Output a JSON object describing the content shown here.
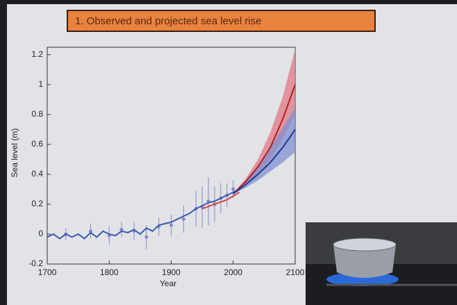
{
  "chart_data": {
    "type": "line",
    "title": "1. Observed and projected sea level rise",
    "xlabel": "Year",
    "ylabel": "Sea level (m)",
    "xlim": [
      1700,
      2100
    ],
    "xticks": [
      1700,
      1800,
      1900,
      2000,
      2100
    ],
    "ylim": [
      -0.2,
      1.25
    ],
    "yticks": [
      -0.2,
      0,
      0.2,
      0.4,
      0.6,
      0.8,
      1,
      1.2
    ],
    "series": [
      {
        "color": "#8a86c8",
        "style": "points",
        "x": [
          1730,
          1770,
          1800,
          1820,
          1840,
          1860,
          1880,
          1900,
          1920,
          1940,
          1950,
          1960,
          1970,
          1980,
          1990,
          2000
        ],
        "values": [
          0.0,
          0.02,
          -0.01,
          0.03,
          0.02,
          -0.02,
          0.05,
          0.06,
          0.1,
          0.17,
          0.18,
          0.22,
          0.2,
          0.24,
          0.26,
          0.3
        ],
        "errors": [
          0.04,
          0.05,
          0.06,
          0.05,
          0.06,
          0.08,
          0.06,
          0.07,
          0.09,
          0.12,
          0.14,
          0.16,
          0.12,
          0.1,
          0.08,
          0.06
        ]
      },
      {
        "color": "#3a5ab0",
        "style": "line",
        "x": [
          1700,
          1710,
          1720,
          1730,
          1740,
          1750,
          1760,
          1770,
          1780,
          1790,
          1800,
          1810,
          1820,
          1830,
          1840,
          1850,
          1860,
          1870,
          1880,
          1890,
          1900,
          1910,
          1920,
          1930,
          1940,
          1950,
          1960,
          1970,
          1980,
          1990,
          2000,
          2010
        ],
        "values": [
          -0.02,
          0.0,
          -0.03,
          0.0,
          -0.02,
          0.0,
          -0.03,
          0.01,
          -0.02,
          0.02,
          0.0,
          -0.01,
          0.02,
          0.01,
          0.03,
          0.0,
          0.04,
          0.02,
          0.06,
          0.07,
          0.08,
          0.1,
          0.12,
          0.14,
          0.17,
          0.19,
          0.21,
          0.22,
          0.24,
          0.26,
          0.28,
          0.3
        ]
      },
      {
        "color": "#d04848",
        "style": "line",
        "x": [
          1950,
          1970,
          1990,
          2010
        ],
        "values": [
          0.17,
          0.2,
          0.23,
          0.28
        ]
      },
      {
        "color": "#b02020",
        "band": "#e07a86",
        "style": "line",
        "x": [
          2000,
          2020,
          2040,
          2060,
          2080,
          2100
        ],
        "values": [
          0.27,
          0.35,
          0.45,
          0.58,
          0.77,
          1.0
        ],
        "lower": [
          0.27,
          0.33,
          0.4,
          0.5,
          0.64,
          0.8
        ],
        "upper": [
          0.27,
          0.37,
          0.5,
          0.68,
          0.92,
          1.24
        ]
      },
      {
        "color": "#1a3a90",
        "band": "#8090d0",
        "style": "line",
        "x": [
          2000,
          2020,
          2040,
          2060,
          2080,
          2100
        ],
        "values": [
          0.27,
          0.33,
          0.4,
          0.48,
          0.58,
          0.7
        ],
        "lower": [
          0.27,
          0.31,
          0.36,
          0.42,
          0.48,
          0.55
        ],
        "upper": [
          0.27,
          0.36,
          0.46,
          0.58,
          0.71,
          0.85
        ]
      }
    ]
  }
}
